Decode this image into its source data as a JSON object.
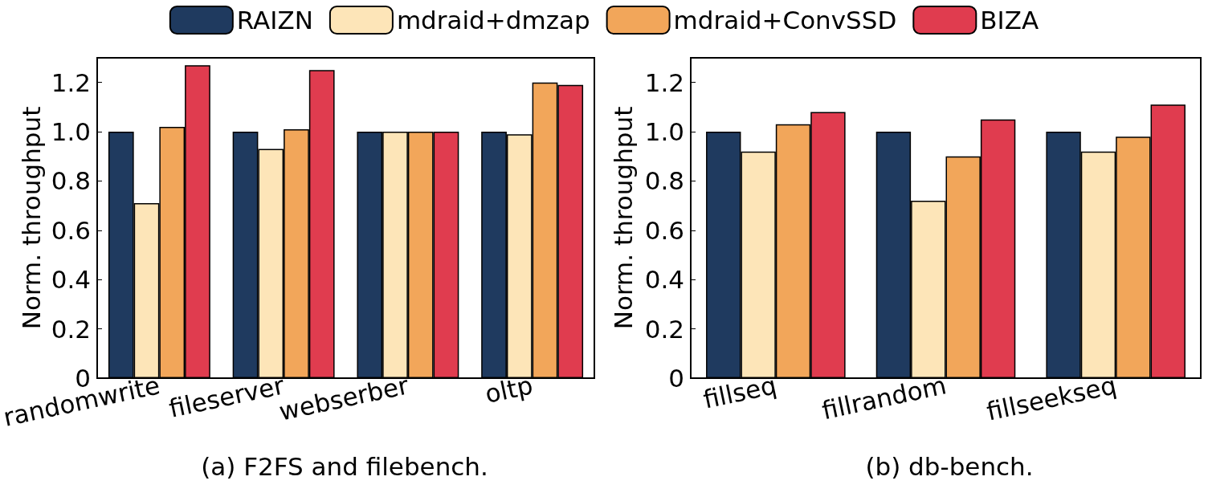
{
  "chart_data": [
    {
      "type": "bar",
      "title": "(a) F2FS and filebench.",
      "ylabel": "Norm. throughput",
      "categories": [
        "randomwrite",
        "fileserver",
        "webserber",
        "oltp"
      ],
      "series": [
        {
          "name": "RAIZN",
          "color": "#1f3a5f",
          "values": [
            1.0,
            1.0,
            1.0,
            1.0
          ]
        },
        {
          "name": "mdraid+dmzap",
          "color": "#fde5b8",
          "values": [
            0.71,
            0.93,
            1.0,
            0.99
          ]
        },
        {
          "name": "mdraid+ConvSSD",
          "color": "#f2a65a",
          "values": [
            1.02,
            1.01,
            1.0,
            1.2
          ]
        },
        {
          "name": "BIZA",
          "color": "#e03c4f",
          "values": [
            1.27,
            1.25,
            1.0,
            1.19
          ]
        }
      ],
      "ylim": [
        0,
        1.3
      ],
      "yticks": [
        0,
        {
          "value": 0.2,
          "label": "0.2"
        },
        {
          "value": 0.4,
          "label": "0.4"
        },
        {
          "value": 0.6,
          "label": "0.6"
        },
        {
          "value": 0.8,
          "label": "0.8"
        },
        {
          "value": 1.0,
          "label": "1.0"
        },
        {
          "value": 1.2,
          "label": "1.2"
        }
      ],
      "legend": "top",
      "grid": false
    },
    {
      "type": "bar",
      "title": "(b) db-bench.",
      "ylabel": "Norm. throughput",
      "categories": [
        "fillseq",
        "fillrandom",
        "fillseekseq"
      ],
      "series": [
        {
          "color": "#1f3a5f",
          "values": [
            1.0,
            1.0,
            1.0
          ]
        },
        {
          "color": "#fde5b8",
          "values": [
            0.92,
            0.72,
            0.92
          ]
        },
        {
          "color": "#f2a65a",
          "values": [
            1.03,
            0.9,
            0.98
          ]
        },
        {
          "color": "#e03c4f",
          "values": [
            1.08,
            1.05,
            1.11
          ]
        }
      ],
      "ylim": [
        0,
        1.3
      ],
      "yticks": [
        0,
        {
          "value": 0.2,
          "label": "0.2"
        },
        {
          "value": 0.4,
          "label": "0.4"
        },
        {
          "value": 0.6,
          "label": "0.6"
        },
        {
          "value": 0.8,
          "label": "0.8"
        },
        {
          "value": 1.0,
          "label": "1.0"
        },
        {
          "value": 1.2,
          "label": "1.2"
        }
      ],
      "grid": false
    }
  ]
}
